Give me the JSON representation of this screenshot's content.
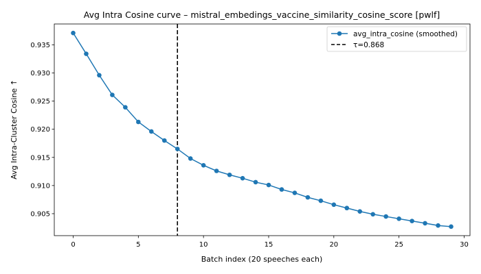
{
  "chart_data": {
    "type": "line",
    "title": "Avg Intra Cosine curve – mistral_embedings_vaccine_similarity_cosine_score [pwlf]",
    "xlabel": "Batch index (20 speeches each)",
    "ylabel": "Avg Intra-Cluster Cosine ↑",
    "xlim": [
      -1.45,
      30.45
    ],
    "ylim": [
      0.9011,
      0.9387
    ],
    "x_ticks": [
      0,
      5,
      10,
      15,
      20,
      25,
      30
    ],
    "y_ticks": [
      0.905,
      0.91,
      0.915,
      0.92,
      0.925,
      0.93,
      0.935
    ],
    "x_tick_labels": [
      "0",
      "5",
      "10",
      "15",
      "20",
      "25",
      "30"
    ],
    "y_tick_labels": [
      "0.905",
      "0.910",
      "0.915",
      "0.920",
      "0.925",
      "0.930",
      "0.935"
    ],
    "grid": false,
    "legend_position": "top-right",
    "series": [
      {
        "name": "avg_intra_cosine (smoothed)",
        "color": "#1f77b4",
        "marker": "circle",
        "x": [
          0,
          1,
          2,
          3,
          4,
          5,
          6,
          7,
          8,
          9,
          10,
          11,
          12,
          13,
          14,
          15,
          16,
          17,
          18,
          19,
          20,
          21,
          22,
          23,
          24,
          25,
          26,
          27,
          28,
          29
        ],
        "y": [
          0.9371,
          0.9334,
          0.9296,
          0.9261,
          0.9239,
          0.9213,
          0.9196,
          0.918,
          0.9165,
          0.9148,
          0.9136,
          0.9126,
          0.9119,
          0.9113,
          0.9106,
          0.9101,
          0.9093,
          0.9087,
          0.9079,
          0.9073,
          0.9066,
          0.906,
          0.9054,
          0.9049,
          0.9045,
          0.9041,
          0.9037,
          0.9033,
          0.9029,
          0.9027
        ]
      }
    ],
    "threshold_line": {
      "label": "τ=0.868",
      "x": 8,
      "color": "#000000",
      "style": "dashed"
    }
  }
}
